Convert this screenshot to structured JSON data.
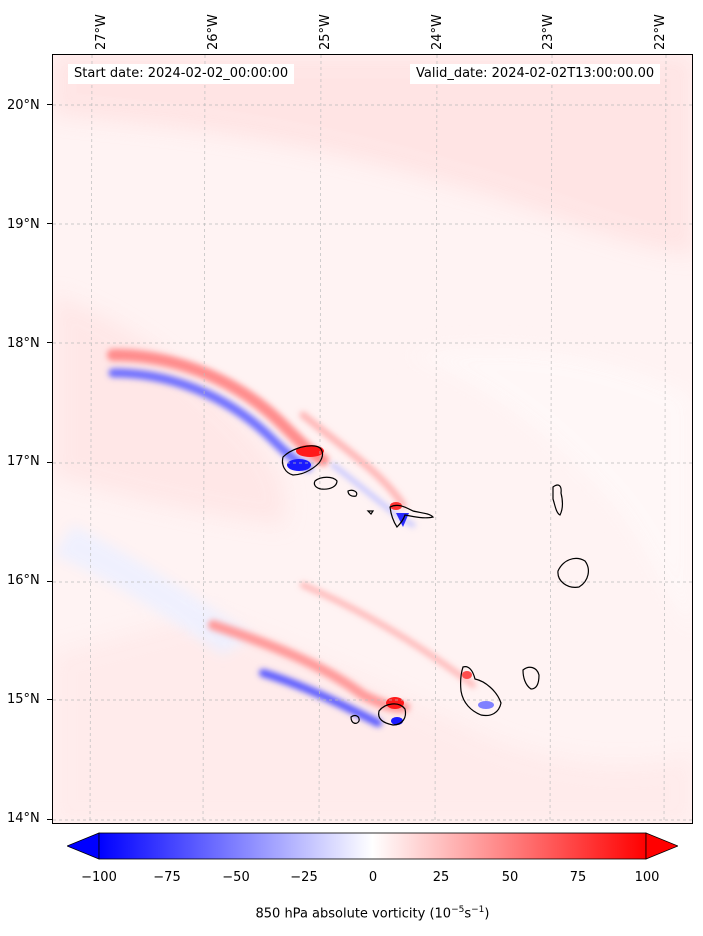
{
  "map": {
    "title_left": "Start date: 2024-02-02_00:00:00",
    "title_right": "Valid_date: 2024-02-02T13:00:00.00",
    "longitude_labels": [
      "27°W",
      "26°W",
      "25°W",
      "24°W",
      "23°W",
      "22°W"
    ],
    "latitude_labels": [
      "20°N",
      "19°N",
      "18°N",
      "17°N",
      "16°N",
      "15°N",
      "14°N"
    ],
    "colorbar": {
      "ticks": [
        "−100",
        "−75",
        "−50",
        "−25",
        "0",
        "25",
        "50",
        "75",
        "100"
      ],
      "range": [
        -100,
        100
      ],
      "title_prefix": "850 hPa absolute vorticity (10",
      "title_exp1": "−5",
      "title_mid": "s",
      "title_exp2": "−1",
      "title_suffix": ")",
      "color_low": "#0000ff",
      "color_mid": "#ffffff",
      "color_high": "#ff0000"
    },
    "field_colors": {
      "background": "#fff3f3",
      "light_pink": "#ffe3e3",
      "strong_red": "#ff1a1a",
      "strong_blue": "#1a1aff",
      "light_blue": "#e8ecff"
    }
  }
}
